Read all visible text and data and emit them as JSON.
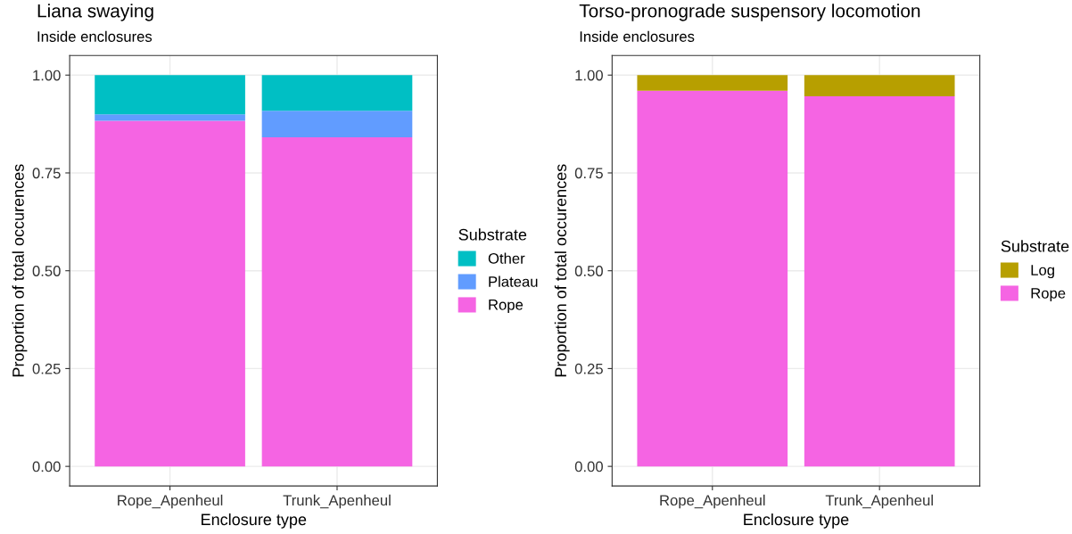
{
  "chart_data": [
    {
      "type": "bar",
      "title": "Liana swaying",
      "subtitle": "Inside enclosures",
      "xlabel": "Enclosure type",
      "ylabel": "Proportion of total occurences",
      "legend_title": "Substrate",
      "categories": [
        "Rope_Apenheul",
        "Trunk_Apenheul"
      ],
      "stacked": true,
      "series": [
        {
          "name": "Rope",
          "color": "#f564e3",
          "values": [
            0.883,
            0.841
          ]
        },
        {
          "name": "Plateau",
          "color": "#619cff",
          "values": [
            0.017,
            0.068
          ]
        },
        {
          "name": "Other",
          "color": "#00bfc4",
          "values": [
            0.1,
            0.091
          ]
        }
      ],
      "ylim": [
        -0.05,
        1.05
      ],
      "yticks": [
        {
          "value": 0,
          "label": "0.00"
        },
        {
          "value": 0.25,
          "label": "0.25"
        },
        {
          "value": 0.5,
          "label": "0.50"
        },
        {
          "value": 0.75,
          "label": "0.75"
        },
        {
          "value": 1,
          "label": "1.00"
        }
      ],
      "grid": true,
      "legend": "right"
    },
    {
      "type": "bar",
      "title": "Torso-pronograde suspensory locomotion",
      "subtitle": "Inside enclosures",
      "xlabel": "Enclosure type",
      "ylabel": "Proportion of total occurences",
      "legend_title": "Substrate",
      "categories": [
        "Rope_Apenheul",
        "Trunk_Apenheul"
      ],
      "stacked": true,
      "series": [
        {
          "name": "Rope",
          "color": "#f564e3",
          "values": [
            0.96,
            0.946
          ]
        },
        {
          "name": "Log",
          "color": "#b79f00",
          "values": [
            0.04,
            0.054
          ]
        }
      ],
      "ylim": [
        -0.05,
        1.05
      ],
      "yticks": [
        {
          "value": 0,
          "label": "0.00"
        },
        {
          "value": 0.25,
          "label": "0.25"
        },
        {
          "value": 0.5,
          "label": "0.50"
        },
        {
          "value": 0.75,
          "label": "0.75"
        },
        {
          "value": 1,
          "label": "1.00"
        }
      ],
      "grid": true,
      "legend": "right"
    }
  ]
}
